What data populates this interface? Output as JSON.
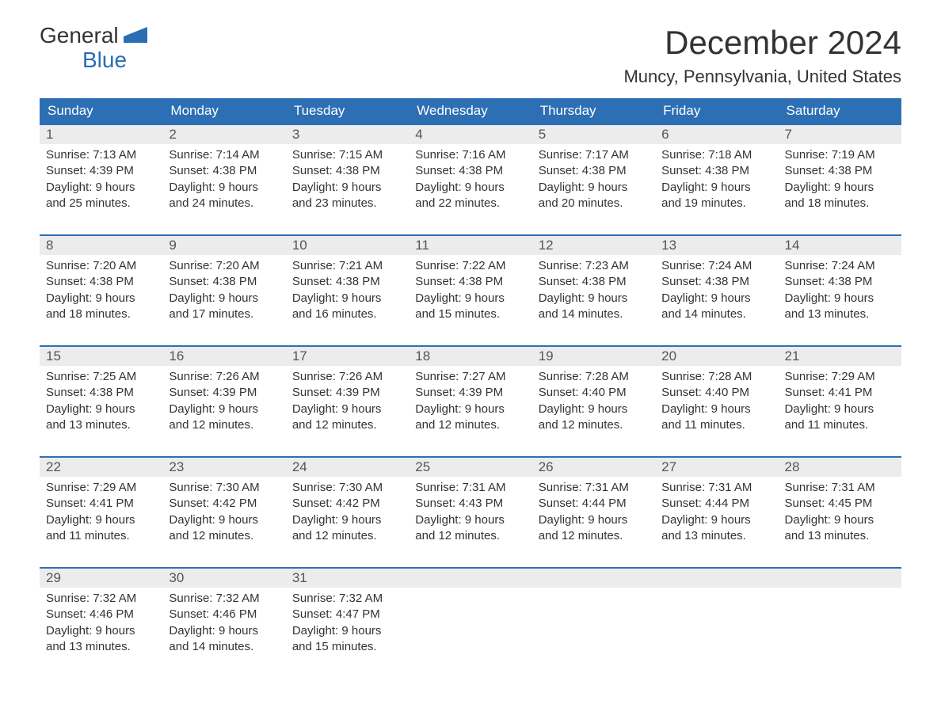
{
  "logo": {
    "word1": "General",
    "word2": "Blue",
    "accent_color": "#2a6db3"
  },
  "title": "December 2024",
  "subtitle": "Muncy, Pennsylvania, United States",
  "colors": {
    "header_bg": "#2d6fb4",
    "header_text": "#ffffff",
    "daynum_bg": "#ececec",
    "daynum_text": "#555555",
    "body_text": "#333333",
    "row_border": "#2d6fb4",
    "page_bg": "#ffffff"
  },
  "typography": {
    "title_fontsize": 42,
    "subtitle_fontsize": 22,
    "weekday_fontsize": 17,
    "daynum_fontsize": 17,
    "body_fontsize": 15,
    "font_family": "Arial"
  },
  "weekdays": [
    "Sunday",
    "Monday",
    "Tuesday",
    "Wednesday",
    "Thursday",
    "Friday",
    "Saturday"
  ],
  "weeks": [
    [
      {
        "n": "1",
        "sunrise": "Sunrise: 7:13 AM",
        "sunset": "Sunset: 4:39 PM",
        "daylight1": "Daylight: 9 hours",
        "daylight2": "and 25 minutes."
      },
      {
        "n": "2",
        "sunrise": "Sunrise: 7:14 AM",
        "sunset": "Sunset: 4:38 PM",
        "daylight1": "Daylight: 9 hours",
        "daylight2": "and 24 minutes."
      },
      {
        "n": "3",
        "sunrise": "Sunrise: 7:15 AM",
        "sunset": "Sunset: 4:38 PM",
        "daylight1": "Daylight: 9 hours",
        "daylight2": "and 23 minutes."
      },
      {
        "n": "4",
        "sunrise": "Sunrise: 7:16 AM",
        "sunset": "Sunset: 4:38 PM",
        "daylight1": "Daylight: 9 hours",
        "daylight2": "and 22 minutes."
      },
      {
        "n": "5",
        "sunrise": "Sunrise: 7:17 AM",
        "sunset": "Sunset: 4:38 PM",
        "daylight1": "Daylight: 9 hours",
        "daylight2": "and 20 minutes."
      },
      {
        "n": "6",
        "sunrise": "Sunrise: 7:18 AM",
        "sunset": "Sunset: 4:38 PM",
        "daylight1": "Daylight: 9 hours",
        "daylight2": "and 19 minutes."
      },
      {
        "n": "7",
        "sunrise": "Sunrise: 7:19 AM",
        "sunset": "Sunset: 4:38 PM",
        "daylight1": "Daylight: 9 hours",
        "daylight2": "and 18 minutes."
      }
    ],
    [
      {
        "n": "8",
        "sunrise": "Sunrise: 7:20 AM",
        "sunset": "Sunset: 4:38 PM",
        "daylight1": "Daylight: 9 hours",
        "daylight2": "and 18 minutes."
      },
      {
        "n": "9",
        "sunrise": "Sunrise: 7:20 AM",
        "sunset": "Sunset: 4:38 PM",
        "daylight1": "Daylight: 9 hours",
        "daylight2": "and 17 minutes."
      },
      {
        "n": "10",
        "sunrise": "Sunrise: 7:21 AM",
        "sunset": "Sunset: 4:38 PM",
        "daylight1": "Daylight: 9 hours",
        "daylight2": "and 16 minutes."
      },
      {
        "n": "11",
        "sunrise": "Sunrise: 7:22 AM",
        "sunset": "Sunset: 4:38 PM",
        "daylight1": "Daylight: 9 hours",
        "daylight2": "and 15 minutes."
      },
      {
        "n": "12",
        "sunrise": "Sunrise: 7:23 AM",
        "sunset": "Sunset: 4:38 PM",
        "daylight1": "Daylight: 9 hours",
        "daylight2": "and 14 minutes."
      },
      {
        "n": "13",
        "sunrise": "Sunrise: 7:24 AM",
        "sunset": "Sunset: 4:38 PM",
        "daylight1": "Daylight: 9 hours",
        "daylight2": "and 14 minutes."
      },
      {
        "n": "14",
        "sunrise": "Sunrise: 7:24 AM",
        "sunset": "Sunset: 4:38 PM",
        "daylight1": "Daylight: 9 hours",
        "daylight2": "and 13 minutes."
      }
    ],
    [
      {
        "n": "15",
        "sunrise": "Sunrise: 7:25 AM",
        "sunset": "Sunset: 4:38 PM",
        "daylight1": "Daylight: 9 hours",
        "daylight2": "and 13 minutes."
      },
      {
        "n": "16",
        "sunrise": "Sunrise: 7:26 AM",
        "sunset": "Sunset: 4:39 PM",
        "daylight1": "Daylight: 9 hours",
        "daylight2": "and 12 minutes."
      },
      {
        "n": "17",
        "sunrise": "Sunrise: 7:26 AM",
        "sunset": "Sunset: 4:39 PM",
        "daylight1": "Daylight: 9 hours",
        "daylight2": "and 12 minutes."
      },
      {
        "n": "18",
        "sunrise": "Sunrise: 7:27 AM",
        "sunset": "Sunset: 4:39 PM",
        "daylight1": "Daylight: 9 hours",
        "daylight2": "and 12 minutes."
      },
      {
        "n": "19",
        "sunrise": "Sunrise: 7:28 AM",
        "sunset": "Sunset: 4:40 PM",
        "daylight1": "Daylight: 9 hours",
        "daylight2": "and 12 minutes."
      },
      {
        "n": "20",
        "sunrise": "Sunrise: 7:28 AM",
        "sunset": "Sunset: 4:40 PM",
        "daylight1": "Daylight: 9 hours",
        "daylight2": "and 11 minutes."
      },
      {
        "n": "21",
        "sunrise": "Sunrise: 7:29 AM",
        "sunset": "Sunset: 4:41 PM",
        "daylight1": "Daylight: 9 hours",
        "daylight2": "and 11 minutes."
      }
    ],
    [
      {
        "n": "22",
        "sunrise": "Sunrise: 7:29 AM",
        "sunset": "Sunset: 4:41 PM",
        "daylight1": "Daylight: 9 hours",
        "daylight2": "and 11 minutes."
      },
      {
        "n": "23",
        "sunrise": "Sunrise: 7:30 AM",
        "sunset": "Sunset: 4:42 PM",
        "daylight1": "Daylight: 9 hours",
        "daylight2": "and 12 minutes."
      },
      {
        "n": "24",
        "sunrise": "Sunrise: 7:30 AM",
        "sunset": "Sunset: 4:42 PM",
        "daylight1": "Daylight: 9 hours",
        "daylight2": "and 12 minutes."
      },
      {
        "n": "25",
        "sunrise": "Sunrise: 7:31 AM",
        "sunset": "Sunset: 4:43 PM",
        "daylight1": "Daylight: 9 hours",
        "daylight2": "and 12 minutes."
      },
      {
        "n": "26",
        "sunrise": "Sunrise: 7:31 AM",
        "sunset": "Sunset: 4:44 PM",
        "daylight1": "Daylight: 9 hours",
        "daylight2": "and 12 minutes."
      },
      {
        "n": "27",
        "sunrise": "Sunrise: 7:31 AM",
        "sunset": "Sunset: 4:44 PM",
        "daylight1": "Daylight: 9 hours",
        "daylight2": "and 13 minutes."
      },
      {
        "n": "28",
        "sunrise": "Sunrise: 7:31 AM",
        "sunset": "Sunset: 4:45 PM",
        "daylight1": "Daylight: 9 hours",
        "daylight2": "and 13 minutes."
      }
    ],
    [
      {
        "n": "29",
        "sunrise": "Sunrise: 7:32 AM",
        "sunset": "Sunset: 4:46 PM",
        "daylight1": "Daylight: 9 hours",
        "daylight2": "and 13 minutes."
      },
      {
        "n": "30",
        "sunrise": "Sunrise: 7:32 AM",
        "sunset": "Sunset: 4:46 PM",
        "daylight1": "Daylight: 9 hours",
        "daylight2": "and 14 minutes."
      },
      {
        "n": "31",
        "sunrise": "Sunrise: 7:32 AM",
        "sunset": "Sunset: 4:47 PM",
        "daylight1": "Daylight: 9 hours",
        "daylight2": "and 15 minutes."
      },
      {
        "empty": true
      },
      {
        "empty": true
      },
      {
        "empty": true
      },
      {
        "empty": true
      }
    ]
  ]
}
